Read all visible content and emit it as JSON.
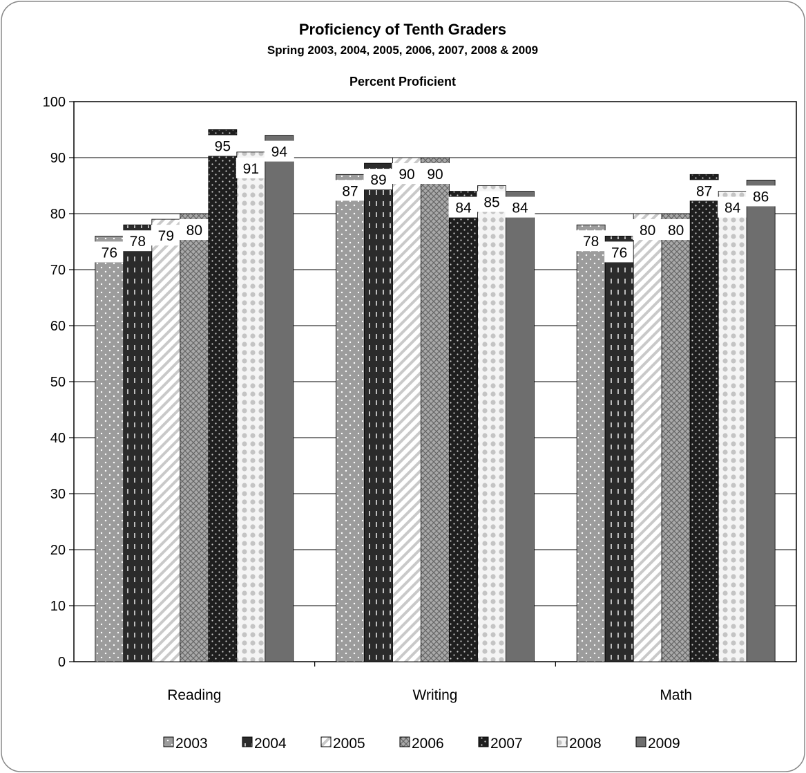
{
  "chart_data": {
    "type": "bar",
    "title": "Proficiency of Tenth Graders",
    "subtitle": "Spring 2003,  2004,  2005, 2006, 2007, 2008 & 2009",
    "ylabel": "Percent Proficient",
    "xlabel": "",
    "categories": [
      "Reading",
      "Writing",
      "Math"
    ],
    "ylim": [
      0,
      100
    ],
    "yticks": [
      0,
      10,
      20,
      30,
      40,
      50,
      60,
      70,
      80,
      90,
      100
    ],
    "grid": true,
    "legend": "bottom",
    "series": [
      {
        "name": "2003",
        "values": [
          76,
          87,
          78
        ],
        "color": "#9c9c9c",
        "pattern": "dots-light"
      },
      {
        "name": "2004",
        "values": [
          78,
          89,
          76
        ],
        "color": "#2b2b2b",
        "pattern": "dashes"
      },
      {
        "name": "2005",
        "values": [
          79,
          90,
          80
        ],
        "color": "#ffffff",
        "pattern": "diagonal"
      },
      {
        "name": "2006",
        "values": [
          80,
          90,
          80
        ],
        "color": "#8a8a8a",
        "pattern": "crosshatch"
      },
      {
        "name": "2007",
        "values": [
          95,
          84,
          87
        ],
        "color": "#1e1e1e",
        "pattern": "dots-dark"
      },
      {
        "name": "2008",
        "values": [
          91,
          85,
          84
        ],
        "color": "#e2e2e2",
        "pattern": "circles"
      },
      {
        "name": "2009",
        "values": [
          94,
          84,
          86
        ],
        "color": "#6e6e6e",
        "pattern": "solid"
      }
    ]
  }
}
